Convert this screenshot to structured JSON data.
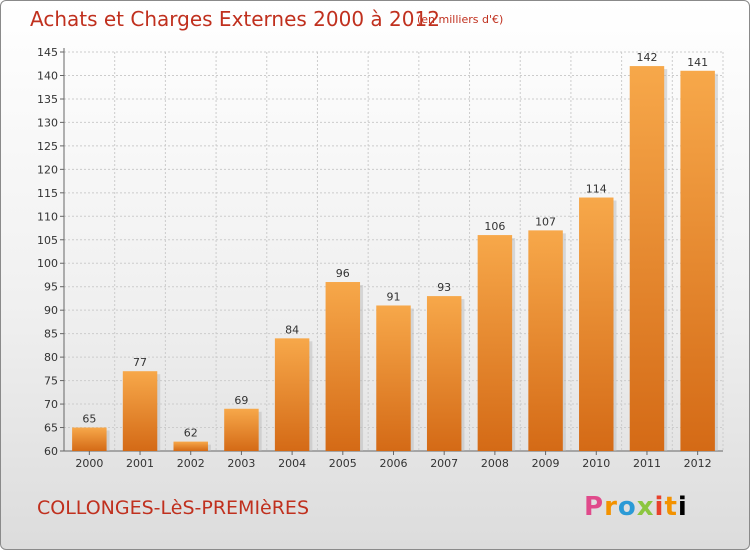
{
  "header": {
    "title": "Achats et Charges Externes 2000 à 2012",
    "unit": "(en milliers d'€)"
  },
  "footer": {
    "place": "COLLONGES-LèS-PREMIèRES",
    "logo": "Proxiti"
  },
  "colors": {
    "title": "#c0301e",
    "bar_light": "#f7a84a",
    "bar_dark": "#d46a16",
    "grid": "#cccccc"
  },
  "chart_data": {
    "type": "bar",
    "title": "Achats et Charges Externes 2000 à 2012",
    "subtitle": "(en milliers d'€)",
    "xlabel": "",
    "ylabel": "",
    "categories": [
      "2000",
      "2001",
      "2002",
      "2003",
      "2004",
      "2005",
      "2006",
      "2007",
      "2008",
      "2009",
      "2010",
      "2011",
      "2012"
    ],
    "values": [
      65,
      77,
      62,
      69,
      84,
      96,
      91,
      93,
      106,
      107,
      114,
      142,
      141
    ],
    "ylim": [
      60,
      145
    ],
    "yticks": [
      60,
      65,
      70,
      75,
      80,
      85,
      90,
      95,
      100,
      105,
      110,
      115,
      120,
      125,
      130,
      135,
      140,
      145
    ],
    "grid": true,
    "legend": "none"
  }
}
